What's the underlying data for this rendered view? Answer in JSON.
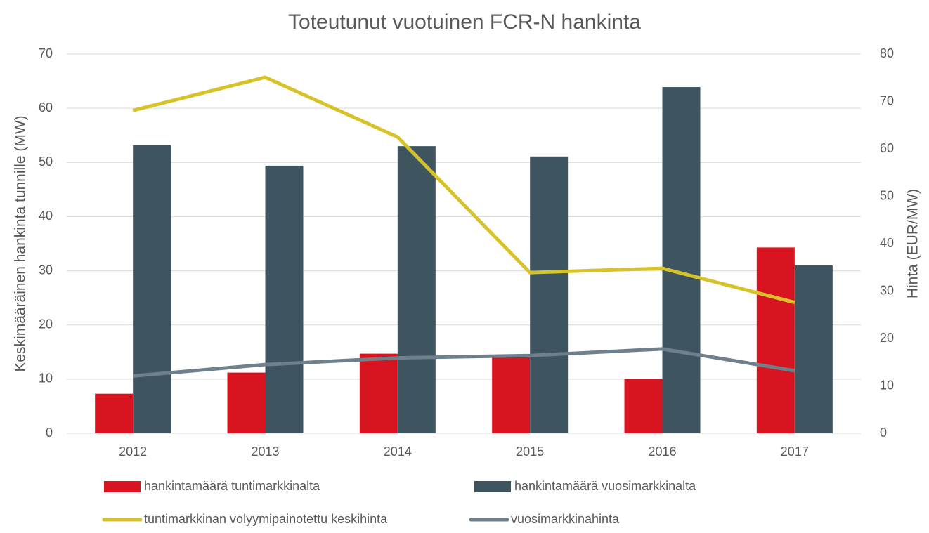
{
  "chart_data": {
    "type": "bar",
    "title": "Toteutunut vuotuinen FCR-N hankinta",
    "y_label": "Keskimääräinen hankinta tunnille (MW)",
    "y2_label": "Hinta (EUR/MW)",
    "categories": [
      "2012",
      "2013",
      "2014",
      "2015",
      "2016",
      "2017"
    ],
    "series": [
      {
        "name": "hankintamäärä tuntimarkkinalta",
        "type": "bar",
        "color": "#d7141f",
        "values": [
          7.3,
          11.2,
          14.7,
          14.0,
          10.1,
          34.3
        ]
      },
      {
        "name": "hankintamäärä vuosimarkkinalta",
        "type": "bar",
        "color": "#3e5560",
        "values": [
          53.2,
          49.4,
          53.0,
          51.1,
          63.9,
          31.0
        ]
      },
      {
        "name": "tuntimarkkinan volyymipainotettu keskihinta",
        "type": "line",
        "axis": "y2",
        "color": "#d8c22a",
        "values": [
          68.1,
          75.1,
          62.5,
          33.9,
          34.8,
          27.6
        ]
      },
      {
        "name": "vuosimarkkinahinta",
        "type": "line",
        "axis": "y2",
        "color": "#6d808b",
        "values": [
          12.1,
          14.5,
          15.9,
          16.4,
          17.8,
          13.2
        ]
      }
    ],
    "ylim": [
      0,
      70
    ],
    "yticks": [
      0,
      10,
      20,
      30,
      40,
      50,
      60,
      70
    ],
    "y2lim": [
      0,
      80
    ],
    "y2ticks": [
      0,
      10,
      20,
      30,
      40,
      50,
      60,
      70,
      80
    ],
    "grid": true,
    "legend": "bottom"
  }
}
